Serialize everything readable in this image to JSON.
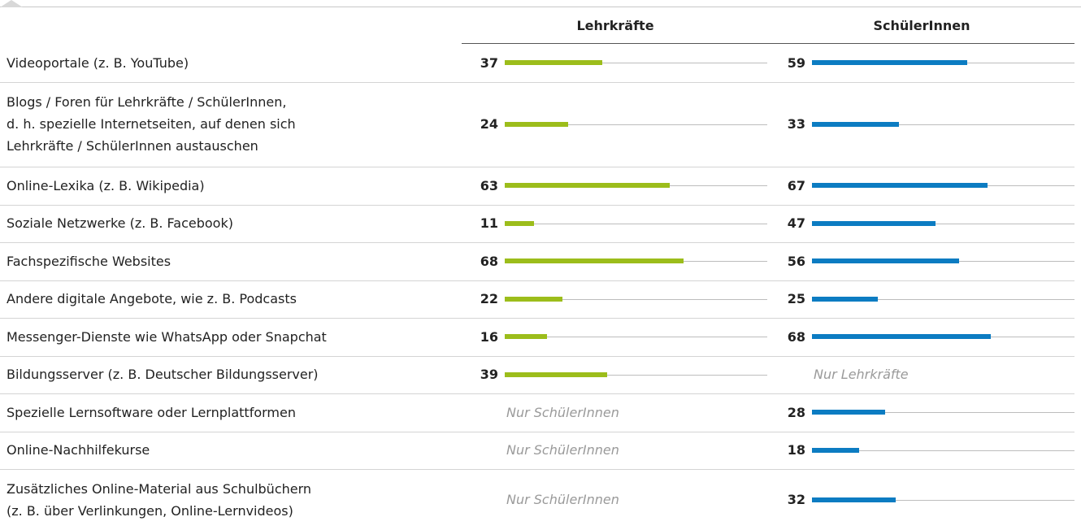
{
  "chart_data": {
    "type": "bar",
    "categories": [
      "Videoportale (z. B. YouTube)",
      "Blogs / Foren für Lehrkräfte / SchülerInnen,\nd. h. spezielle Internetseiten, auf denen sich\nLehrkräfte / SchülerInnen austauschen",
      "Online-Lexika (z. B. Wikipedia)",
      "Soziale Netzwerke (z. B. Facebook)",
      "Fachspezifische Websites",
      "Andere digitale Angebote, wie z. B. Podcasts",
      "Messenger-Dienste wie WhatsApp oder Snapchat",
      "Bildungsserver (z. B. Deutscher Bildungsserver)",
      "Spezielle Lernsoftware oder Lernplattformen",
      "Online-Nachhilfekurse",
      "Zusätzliches Online-Material aus Schulbüchern\n(z. B. über Verlinkungen, Online-Lernvideos)"
    ],
    "series": [
      {
        "name": "Lehrkräfte",
        "color": "#9cbd1b",
        "missing_label": "Nur SchülerInnen",
        "values": [
          37,
          24,
          63,
          11,
          68,
          22,
          16,
          39,
          null,
          null,
          null
        ]
      },
      {
        "name": "SchülerInnen",
        "color": "#0c7cc2",
        "missing_label": "Nur Lehrkräfte",
        "values": [
          59,
          33,
          67,
          47,
          56,
          25,
          68,
          null,
          28,
          18,
          32
        ]
      }
    ],
    "xlim": [
      0,
      100
    ]
  }
}
